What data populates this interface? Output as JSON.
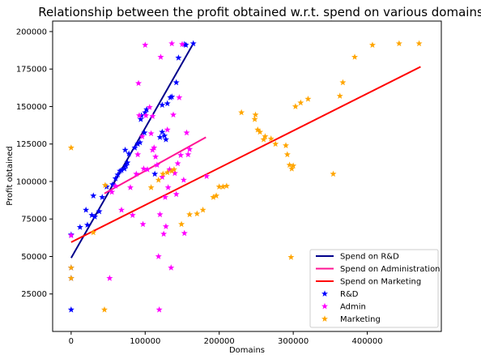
{
  "chart_data": {
    "type": "scatter",
    "title": "Relationship between the profit obtained w.r.t. spend on various domains",
    "xlabel": "Domains",
    "ylabel": "Profit obtained",
    "xlim": [
      -25000,
      500000
    ],
    "ylim": [
      0,
      207000
    ],
    "x_ticks": [
      0,
      100000,
      200000,
      300000,
      400000
    ],
    "x_tick_labels": [
      "0",
      "100000",
      "200000",
      "300000",
      "400000"
    ],
    "y_ticks": [
      25000,
      50000,
      75000,
      100000,
      125000,
      150000,
      175000,
      200000
    ],
    "y_tick_labels": [
      "25000",
      "50000",
      "75000",
      "100000",
      "125000",
      "150000",
      "175000",
      "200000"
    ],
    "grid": false,
    "legend_position": "bottom-right",
    "lines": [
      {
        "name": "Spend on R&D",
        "color": "#00008b",
        "x": [
          0,
          165000
        ],
        "y": [
          49000,
          192000
        ]
      },
      {
        "name": "Spend on Administration",
        "color": "#ff1493",
        "x": [
          45000,
          182000
        ],
        "y": [
          92000,
          129500
        ]
      },
      {
        "name": "Spend on Marketing",
        "color": "#ff0000",
        "x": [
          0,
          472000
        ],
        "y": [
          59500,
          176500
        ]
      }
    ],
    "series": [
      {
        "name": "R&D",
        "marker": "star",
        "color": "#0000ff",
        "points": [
          [
            0,
            14500
          ],
          [
            0,
            35500
          ],
          [
            0,
            42500
          ],
          [
            0,
            64500
          ],
          [
            12000,
            69500
          ],
          [
            22000,
            71000
          ],
          [
            28000,
            77500
          ],
          [
            32000,
            76500
          ],
          [
            20000,
            81000
          ],
          [
            38000,
            80000
          ],
          [
            42000,
            89500
          ],
          [
            30000,
            90500
          ],
          [
            48000,
            96500
          ],
          [
            56000,
            98000
          ],
          [
            60000,
            102000
          ],
          [
            63000,
            104500
          ],
          [
            66000,
            107000
          ],
          [
            68000,
            107500
          ],
          [
            72000,
            108500
          ],
          [
            74000,
            110500
          ],
          [
            76000,
            112500
          ],
          [
            78000,
            118500
          ],
          [
            73000,
            121000
          ],
          [
            86000,
            122500
          ],
          [
            90000,
            125000
          ],
          [
            93000,
            126000
          ],
          [
            99000,
            132500
          ],
          [
            94000,
            141500
          ],
          [
            95000,
            144000
          ],
          [
            100000,
            146000
          ],
          [
            102000,
            148000
          ],
          [
            120000,
            129500
          ],
          [
            123000,
            133000
          ],
          [
            126000,
            130500
          ],
          [
            130000,
            152000
          ],
          [
            134000,
            156000
          ],
          [
            136000,
            156500
          ],
          [
            142000,
            166000
          ],
          [
            145000,
            182500
          ],
          [
            153000,
            191500
          ],
          [
            165000,
            192000
          ],
          [
            155000,
            191000
          ],
          [
            123000,
            151000
          ],
          [
            113000,
            105000
          ],
          [
            128000,
            128000
          ]
        ]
      },
      {
        "name": "Admin",
        "marker": "star",
        "color": "#ff00ff",
        "points": [
          [
            0,
            64000
          ],
          [
            52000,
            35500
          ],
          [
            55000,
            93000
          ],
          [
            60000,
            97000
          ],
          [
            68000,
            81000
          ],
          [
            80000,
            96000
          ],
          [
            83000,
            77500
          ],
          [
            88000,
            105000
          ],
          [
            90000,
            118000
          ],
          [
            91000,
            165500
          ],
          [
            92000,
            144000
          ],
          [
            96000,
            130000
          ],
          [
            97000,
            71500
          ],
          [
            98000,
            108500
          ],
          [
            100000,
            191000
          ],
          [
            101000,
            144000
          ],
          [
            103000,
            108000
          ],
          [
            106000,
            149500
          ],
          [
            108000,
            132000
          ],
          [
            110000,
            143500
          ],
          [
            112000,
            122500
          ],
          [
            114000,
            116500
          ],
          [
            116000,
            111000
          ],
          [
            118000,
            50000
          ],
          [
            119000,
            14500
          ],
          [
            120000,
            78000
          ],
          [
            121000,
            183000
          ],
          [
            123000,
            103000
          ],
          [
            125000,
            65000
          ],
          [
            127000,
            89500
          ],
          [
            128000,
            70000
          ],
          [
            131000,
            96000
          ],
          [
            133000,
            108000
          ],
          [
            135000,
            42500
          ],
          [
            136000,
            192000
          ],
          [
            138000,
            144500
          ],
          [
            140000,
            105500
          ],
          [
            142000,
            91500
          ],
          [
            144000,
            112000
          ],
          [
            146000,
            156000
          ],
          [
            148000,
            117500
          ],
          [
            150000,
            191500
          ],
          [
            152000,
            101000
          ],
          [
            153000,
            65500
          ],
          [
            156000,
            132500
          ],
          [
            158000,
            118000
          ],
          [
            160000,
            121500
          ],
          [
            183000,
            103500
          ],
          [
            110000,
            121000
          ],
          [
            130000,
            134500
          ]
        ]
      },
      {
        "name": "Marketing",
        "marker": "star",
        "color": "#ffa500",
        "points": [
          [
            0,
            122500
          ],
          [
            0,
            42500
          ],
          [
            0,
            35500
          ],
          [
            30000,
            66000
          ],
          [
            45000,
            14500
          ],
          [
            46000,
            97500
          ],
          [
            108000,
            96000
          ],
          [
            118000,
            101000
          ],
          [
            124000,
            105000
          ],
          [
            130000,
            106000
          ],
          [
            136000,
            107000
          ],
          [
            139000,
            108000
          ],
          [
            149000,
            71500
          ],
          [
            160000,
            78000
          ],
          [
            170000,
            78500
          ],
          [
            178000,
            81000
          ],
          [
            192000,
            89500
          ],
          [
            196000,
            90500
          ],
          [
            200000,
            96500
          ],
          [
            205000,
            96500
          ],
          [
            210000,
            97000
          ],
          [
            230000,
            146000
          ],
          [
            248000,
            141500
          ],
          [
            249000,
            144500
          ],
          [
            252000,
            134500
          ],
          [
            255000,
            133000
          ],
          [
            260000,
            128000
          ],
          [
            262000,
            130000
          ],
          [
            270000,
            128500
          ],
          [
            276000,
            125000
          ],
          [
            290000,
            124000
          ],
          [
            292000,
            118000
          ],
          [
            295000,
            111000
          ],
          [
            298000,
            108500
          ],
          [
            300000,
            110500
          ],
          [
            297000,
            49500
          ],
          [
            303000,
            150000
          ],
          [
            310000,
            152500
          ],
          [
            320000,
            155000
          ],
          [
            354000,
            105000
          ],
          [
            363000,
            157000
          ],
          [
            367000,
            166000
          ],
          [
            383000,
            183000
          ],
          [
            407000,
            191000
          ],
          [
            443000,
            192000
          ],
          [
            470000,
            192000
          ]
        ]
      }
    ]
  }
}
